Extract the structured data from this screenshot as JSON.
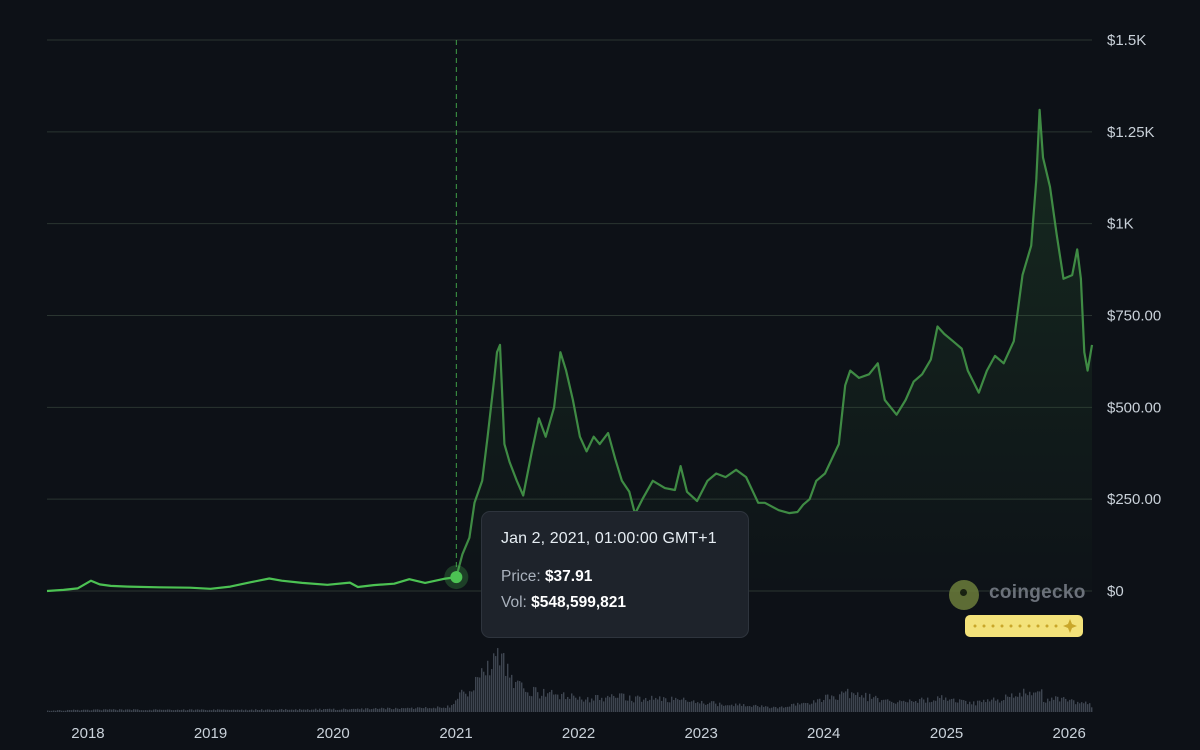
{
  "chart_data": {
    "type": "area",
    "series": [
      {
        "points": [
          [
            "2017-09-01",
            0
          ],
          [
            "2017-10-20",
            3
          ],
          [
            "2017-12-01",
            7
          ],
          [
            "2018-01-10",
            28
          ],
          [
            "2018-02-05",
            18
          ],
          [
            "2018-03-10",
            14
          ],
          [
            "2018-05-01",
            12
          ],
          [
            "2018-08-01",
            10
          ],
          [
            "2018-11-01",
            9
          ],
          [
            "2019-01-01",
            6
          ],
          [
            "2019-03-01",
            12
          ],
          [
            "2019-05-01",
            24
          ],
          [
            "2019-06-25",
            34
          ],
          [
            "2019-08-01",
            28
          ],
          [
            "2019-10-01",
            22
          ],
          [
            "2019-12-15",
            17
          ],
          [
            "2020-02-20",
            23
          ],
          [
            "2020-03-15",
            11
          ],
          [
            "2020-05-01",
            16
          ],
          [
            "2020-07-01",
            20
          ],
          [
            "2020-08-15",
            32
          ],
          [
            "2020-10-01",
            22
          ],
          [
            "2020-11-25",
            33
          ],
          [
            "2021-01-02",
            37.91
          ],
          [
            "2021-01-20",
            100
          ],
          [
            "2021-02-10",
            145
          ],
          [
            "2021-02-25",
            240
          ],
          [
            "2021-03-20",
            300
          ],
          [
            "2021-04-05",
            420
          ],
          [
            "2021-04-25",
            580
          ],
          [
            "2021-05-03",
            650
          ],
          [
            "2021-05-12",
            670
          ],
          [
            "2021-05-25",
            400
          ],
          [
            "2021-06-10",
            350
          ],
          [
            "2021-07-01",
            300
          ],
          [
            "2021-07-20",
            260
          ],
          [
            "2021-08-15",
            380
          ],
          [
            "2021-09-05",
            470
          ],
          [
            "2021-09-25",
            420
          ],
          [
            "2021-10-20",
            500
          ],
          [
            "2021-11-08",
            650
          ],
          [
            "2021-11-25",
            600
          ],
          [
            "2021-12-15",
            520
          ],
          [
            "2022-01-05",
            420
          ],
          [
            "2022-01-25",
            380
          ],
          [
            "2022-02-15",
            420
          ],
          [
            "2022-03-05",
            400
          ],
          [
            "2022-03-30",
            430
          ],
          [
            "2022-04-20",
            360
          ],
          [
            "2022-05-10",
            300
          ],
          [
            "2022-06-01",
            270
          ],
          [
            "2022-06-18",
            210
          ],
          [
            "2022-07-10",
            250
          ],
          [
            "2022-08-10",
            300
          ],
          [
            "2022-09-15",
            280
          ],
          [
            "2022-10-15",
            275
          ],
          [
            "2022-11-01",
            340
          ],
          [
            "2022-11-20",
            270
          ],
          [
            "2022-12-20",
            245
          ],
          [
            "2023-01-20",
            300
          ],
          [
            "2023-02-15",
            320
          ],
          [
            "2023-03-15",
            310
          ],
          [
            "2023-04-15",
            330
          ],
          [
            "2023-05-15",
            310
          ],
          [
            "2023-06-20",
            240
          ],
          [
            "2023-07-10",
            240
          ],
          [
            "2023-08-20",
            220
          ],
          [
            "2023-09-20",
            212
          ],
          [
            "2023-10-15",
            215
          ],
          [
            "2023-11-01",
            235
          ],
          [
            "2023-11-20",
            250
          ],
          [
            "2023-12-10",
            300
          ],
          [
            "2024-01-05",
            320
          ],
          [
            "2024-02-15",
            400
          ],
          [
            "2024-03-05",
            560
          ],
          [
            "2024-03-20",
            600
          ],
          [
            "2024-04-15",
            580
          ],
          [
            "2024-05-15",
            590
          ],
          [
            "2024-06-10",
            620
          ],
          [
            "2024-07-01",
            520
          ],
          [
            "2024-08-05",
            480
          ],
          [
            "2024-09-01",
            520
          ],
          [
            "2024-09-25",
            570
          ],
          [
            "2024-10-20",
            590
          ],
          [
            "2024-11-15",
            630
          ],
          [
            "2024-12-05",
            720
          ],
          [
            "2024-12-25",
            700
          ],
          [
            "2025-01-20",
            680
          ],
          [
            "2025-02-15",
            660
          ],
          [
            "2025-03-05",
            600
          ],
          [
            "2025-04-07",
            540
          ],
          [
            "2025-05-01",
            600
          ],
          [
            "2025-05-25",
            640
          ],
          [
            "2025-06-20",
            620
          ],
          [
            "2025-07-20",
            680
          ],
          [
            "2025-08-15",
            860
          ],
          [
            "2025-09-10",
            940
          ],
          [
            "2025-09-25",
            1120
          ],
          [
            "2025-10-05",
            1310
          ],
          [
            "2025-10-15",
            1180
          ],
          [
            "2025-11-05",
            1100
          ],
          [
            "2025-11-25",
            970
          ],
          [
            "2025-12-15",
            850
          ],
          [
            "2026-01-10",
            860
          ],
          [
            "2026-01-25",
            930
          ],
          [
            "2026-02-05",
            850
          ],
          [
            "2026-02-15",
            650
          ],
          [
            "2026-02-25",
            600
          ],
          [
            "2026-03-10",
            670
          ]
        ]
      }
    ],
    "y_ticks": [
      "$0",
      "$250.00",
      "$500.00",
      "$750.00",
      "$1K",
      "$1.25K",
      "$1.5K"
    ],
    "y_tick_values": [
      0,
      250,
      500,
      750,
      1000,
      1250,
      1500
    ],
    "ylim": [
      0,
      1500
    ],
    "x_ticks": [
      "2018",
      "2019",
      "2020",
      "2021",
      "2022",
      "2023",
      "2024",
      "2025",
      "2026"
    ],
    "xlim": [
      "2017-09-01",
      "2026-03-10"
    ],
    "grid": true,
    "legend": "none",
    "volume": [
      [
        "2017-09-01",
        2
      ],
      [
        "2018-01-15",
        3
      ],
      [
        "2019-06-01",
        3
      ],
      [
        "2020-03-01",
        4
      ],
      [
        "2020-08-15",
        5
      ],
      [
        "2020-12-15",
        8
      ],
      [
        "2021-01-10",
        22
      ],
      [
        "2021-02-20",
        35
      ],
      [
        "2021-04-15",
        70
      ],
      [
        "2021-05-12",
        90
      ],
      [
        "2021-05-25",
        60
      ],
      [
        "2021-07-01",
        35
      ],
      [
        "2021-09-01",
        25
      ],
      [
        "2021-11-10",
        22
      ],
      [
        "2022-01-15",
        18
      ],
      [
        "2022-05-10",
        20
      ],
      [
        "2022-06-18",
        18
      ],
      [
        "2022-11-10",
        16
      ],
      [
        "2023-03-10",
        10
      ],
      [
        "2023-09-01",
        6
      ],
      [
        "2024-03-10",
        25
      ],
      [
        "2024-08-05",
        12
      ],
      [
        "2024-12-10",
        18
      ],
      [
        "2025-04-07",
        12
      ],
      [
        "2025-10-05",
        30
      ],
      [
        "2025-10-15",
        18
      ],
      [
        "2026-02-05",
        14
      ],
      [
        "2026-03-10",
        8
      ]
    ],
    "colors": {
      "line_early": "#4cc253",
      "line": "#3f8b44",
      "grid": "#2a3531",
      "crosshair": "#4cc253",
      "volume": "#3e4550"
    },
    "highlight": {
      "date": "Jan 2, 2021, 01:00:00 GMT+1",
      "x": "2021-01-02",
      "price_label": "Price:",
      "price": "$37.91",
      "price_value": 37.91,
      "vol_label": "Vol:",
      "vol": "$548,599,821"
    }
  },
  "brand": {
    "name": "coingecko",
    "logo_icon": "gecko-logo-icon"
  }
}
